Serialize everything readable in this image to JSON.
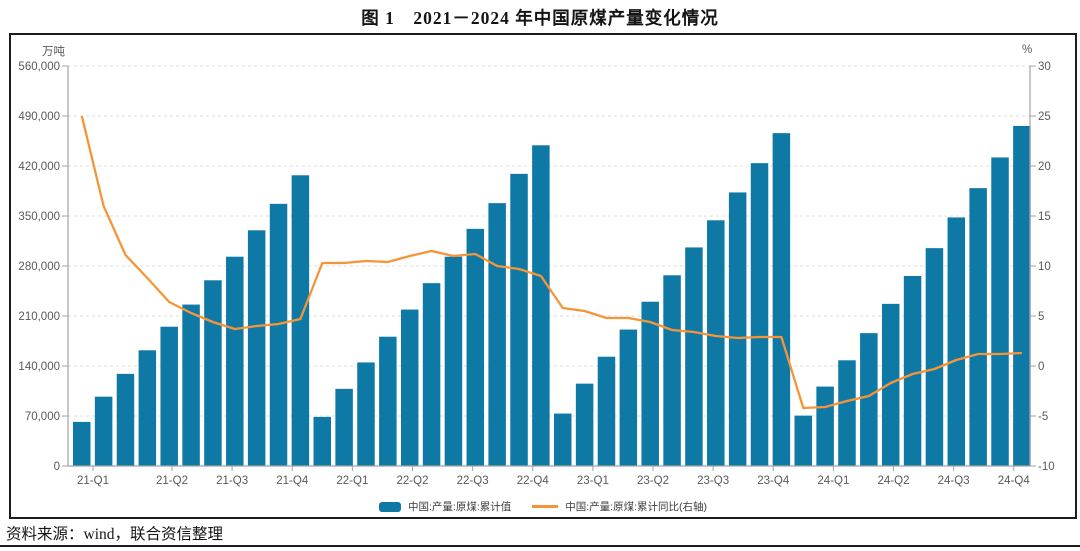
{
  "page": {
    "title": "图 1　2021－2024 年中国原煤产量变化情况",
    "source_note": "资料来源：wind，联合资信整理"
  },
  "legend": {
    "bar_label": "中国:产量:原煤:累计值",
    "line_label": "中国:产量:原煤:累计同比(右轴)"
  },
  "colors": {
    "bar": "#0f79a5",
    "line": "#f79437",
    "grid": "#dcdcdc",
    "axis": "#a3a3a3",
    "tick_text": "#595959"
  },
  "chart_data": {
    "type": "bar+line combo",
    "title": "图 1　2021－2024 年中国原煤产量变化情况",
    "structure_note": "4 year-groups, 11 monthly cumulative bars per year (Jan-Feb combined: Feb..Dec); continuous YoY line on right axis",
    "left_axis": {
      "unit": "万吨",
      "min": 0,
      "max": 560000,
      "step": 70000,
      "tick_labels": [
        "0",
        "70,000",
        "140,000",
        "210,000",
        "280,000",
        "350,000",
        "420,000",
        "490,000",
        "560,000"
      ]
    },
    "right_axis": {
      "unit": "%",
      "min": -10,
      "max": 30,
      "step": 5,
      "tick_labels": [
        "-10",
        "-5",
        "0",
        "5",
        "10",
        "15",
        "20",
        "25",
        "30"
      ]
    },
    "x_tick_labels": [
      "21-Q1",
      "21-Q2",
      "21-Q3",
      "21-Q4",
      "22-Q1",
      "22-Q2",
      "22-Q3",
      "22-Q4",
      "23-Q1",
      "23-Q2",
      "23-Q3",
      "23-Q4",
      "24-Q1",
      "24-Q2",
      "24-Q3",
      "24-Q4"
    ],
    "grid": "horizontal dashed",
    "legend_position": "bottom center",
    "series": [
      {
        "name": "中国:产量:原煤:累计值",
        "type": "bar",
        "axis": "left",
        "color": "#0f79a5",
        "values": [
          61760,
          97056,
          129000,
          162000,
          195000,
          226000,
          260000,
          293000,
          330000,
          367000,
          407000,
          68743,
          108000,
          145000,
          181000,
          219000,
          256000,
          293000,
          332000,
          368000,
          409000,
          449000,
          73423,
          115300,
          153000,
          191000,
          230000,
          267000,
          306000,
          344000,
          383000,
          424000,
          466000,
          70520,
          111190,
          148000,
          186000,
          227000,
          266000,
          305000,
          348000,
          389000,
          432000,
          476000
        ]
      },
      {
        "name": "中国:产量:原煤:累计同比(右轴)",
        "type": "line",
        "axis": "right",
        "color": "#f79437",
        "values": [
          25.0,
          16.0,
          11.1,
          8.8,
          6.4,
          5.3,
          4.4,
          3.7,
          4.0,
          4.2,
          4.7,
          10.3,
          10.3,
          10.5,
          10.4,
          11.0,
          11.5,
          11.0,
          11.2,
          10.0,
          9.7,
          9.0,
          5.8,
          5.5,
          4.8,
          4.8,
          4.4,
          3.6,
          3.4,
          3.0,
          2.8,
          2.9,
          2.9,
          -4.2,
          -4.1,
          -3.5,
          -3.0,
          -1.7,
          -0.8,
          -0.3,
          0.6,
          1.2,
          1.2,
          1.3
        ]
      }
    ]
  }
}
